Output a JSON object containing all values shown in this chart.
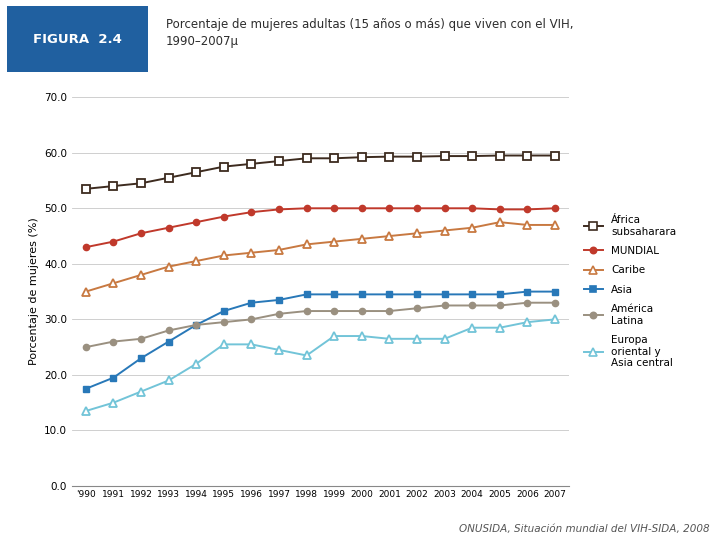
{
  "years": [
    1990,
    1991,
    1992,
    1993,
    1994,
    1995,
    1996,
    1997,
    1998,
    1999,
    2000,
    2001,
    2002,
    2003,
    2004,
    2005,
    2006,
    2007
  ],
  "africa": [
    53.5,
    54.0,
    54.5,
    55.5,
    56.5,
    57.5,
    58.0,
    58.5,
    59.0,
    59.0,
    59.2,
    59.3,
    59.3,
    59.4,
    59.4,
    59.5,
    59.5,
    59.5
  ],
  "mundial": [
    43.0,
    44.0,
    45.5,
    46.5,
    47.5,
    48.5,
    49.3,
    49.8,
    50.0,
    50.0,
    50.0,
    50.0,
    50.0,
    50.0,
    50.0,
    49.8,
    49.8,
    50.0
  ],
  "caribe": [
    35.0,
    36.5,
    38.0,
    39.5,
    40.5,
    41.5,
    42.0,
    42.5,
    43.5,
    44.0,
    44.5,
    45.0,
    45.5,
    46.0,
    46.5,
    47.5,
    47.0,
    47.0
  ],
  "asia": [
    17.5,
    19.5,
    23.0,
    26.0,
    29.0,
    31.5,
    33.0,
    33.5,
    34.5,
    34.5,
    34.5,
    34.5,
    34.5,
    34.5,
    34.5,
    34.5,
    35.0,
    35.0
  ],
  "americalatina": [
    25.0,
    26.0,
    26.5,
    28.0,
    29.0,
    29.5,
    30.0,
    31.0,
    31.5,
    31.5,
    31.5,
    31.5,
    32.0,
    32.5,
    32.5,
    32.5,
    33.0,
    33.0
  ],
  "europa": [
    13.5,
    15.0,
    17.0,
    19.0,
    22.0,
    25.5,
    25.5,
    24.5,
    23.5,
    27.0,
    27.0,
    26.5,
    26.5,
    26.5,
    28.5,
    28.5,
    29.5,
    30.0
  ],
  "color_africa": "#3d2b1f",
  "color_mundial": "#c0392b",
  "color_caribe": "#c87941",
  "color_asia": "#2878b8",
  "color_americalatina": "#9a9080",
  "color_europa": "#72c4d8",
  "title_fig": "FIGURA  2.4",
  "title_main": "Porcentaje de mujeres adultas (15 años o más) que viven con el VIH,\n1990–2007µ",
  "ylabel": "Porcentaje de mujeres (%)",
  "ylim": [
    0,
    70
  ],
  "yticks": [
    0.0,
    10.0,
    20.0,
    30.0,
    40.0,
    50.0,
    60.0,
    70.0
  ],
  "ytick_labels": [
    "0.0",
    "10.0",
    "20.0",
    "30.0",
    "40.0",
    "50.0",
    "60.0",
    "70.0"
  ],
  "xtick_labels": [
    "'990",
    "1991",
    "1992",
    "1993",
    "1994",
    "1995",
    "1996",
    "1997",
    "1998",
    "1999",
    "2000",
    "2001",
    "2002",
    "2003",
    "2004",
    "2005",
    "2006",
    "2007"
  ],
  "footer": "ONUSIDA, Situación mundial del VIH-SIDA, 2008",
  "header_bg": "#b5a898",
  "fig_label_bg": "#2060a0",
  "bg_color": "#ffffff",
  "legend_labels": [
    "África\nsubsaharara",
    "MUNDIAL",
    "Caribe",
    "Asia",
    "América\nLatina",
    "Europa\noriental y\nAsia central"
  ]
}
